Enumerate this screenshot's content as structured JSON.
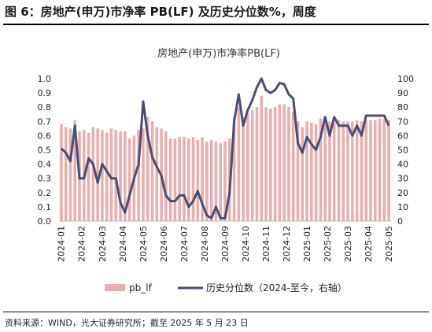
{
  "figure": {
    "title": "图 6：房地产(申万)市净率 PB(LF) 及历史分位数%，周度",
    "source": "资料来源：WIND，光大证券研究所；截至 2025 年 5 月 23 日"
  },
  "chart_data": {
    "type": "bar",
    "title": "房地产(申万)市净率PB(LF)",
    "x_tick_labels": [
      "2024-01",
      "2024-02",
      "2024-03",
      "2024-04",
      "2024-05",
      "2024-06",
      "2024-07",
      "2024-08",
      "2024-09",
      "2024-10",
      "2024-11",
      "2024-12",
      "2025-01",
      "2025-02",
      "2025-03",
      "2025-04",
      "2025-05"
    ],
    "y_left": {
      "min": 0,
      "max": 1.0,
      "step": 0.1,
      "ticks": [
        "0.0",
        "0.1",
        "0.2",
        "0.3",
        "0.4",
        "0.5",
        "0.6",
        "0.7",
        "0.8",
        "0.9",
        "1.0"
      ]
    },
    "y_right": {
      "min": 0,
      "max": 100,
      "step": 10,
      "ticks": [
        "0",
        "10",
        "20",
        "30",
        "40",
        "50",
        "60",
        "70",
        "80",
        "90",
        "100"
      ]
    },
    "legend_position": "bottom",
    "colors": {
      "bar": "#e8aeb0",
      "line": "#4a4c73"
    },
    "series": [
      {
        "name": "pb_lf",
        "type": "bar",
        "axis": "left",
        "values": [
          0.68,
          0.66,
          0.65,
          0.71,
          0.63,
          0.64,
          0.62,
          0.66,
          0.65,
          0.64,
          0.62,
          0.65,
          0.64,
          0.63,
          0.63,
          0.58,
          0.6,
          0.64,
          0.65,
          0.73,
          0.7,
          0.66,
          0.65,
          0.63,
          0.58,
          0.58,
          0.59,
          0.59,
          0.58,
          0.59,
          0.57,
          0.59,
          0.56,
          0.57,
          0.56,
          0.55,
          0.56,
          0.58,
          0.73,
          0.8,
          0.73,
          0.76,
          0.78,
          0.8,
          0.88,
          0.8,
          0.79,
          0.8,
          0.82,
          0.82,
          0.8,
          0.77,
          0.7,
          0.66,
          0.7,
          0.69,
          0.68,
          0.72,
          0.68,
          0.7,
          0.69,
          0.71,
          0.7,
          0.7,
          0.7,
          0.71,
          0.7,
          0.71,
          0.71,
          0.71,
          0.72,
          0.72,
          0.71
        ]
      },
      {
        "name": "历史分位数（2024-至今，右轴）",
        "type": "line",
        "axis": "right",
        "values": [
          51,
          48,
          42,
          67,
          30,
          30,
          44,
          40,
          27,
          40,
          35,
          30,
          30,
          13,
          6,
          18,
          30,
          40,
          84,
          60,
          45,
          38,
          32,
          18,
          14,
          14,
          18,
          18,
          10,
          14,
          21,
          12,
          4,
          2,
          10,
          2,
          2,
          20,
          70,
          89,
          67,
          78,
          85,
          94,
          100,
          92,
          90,
          92,
          97,
          96,
          89,
          86,
          55,
          48,
          59,
          54,
          50,
          59,
          73,
          60,
          73,
          67,
          67,
          67,
          60,
          67,
          60,
          74,
          74,
          74,
          74,
          74,
          67
        ]
      }
    ]
  }
}
